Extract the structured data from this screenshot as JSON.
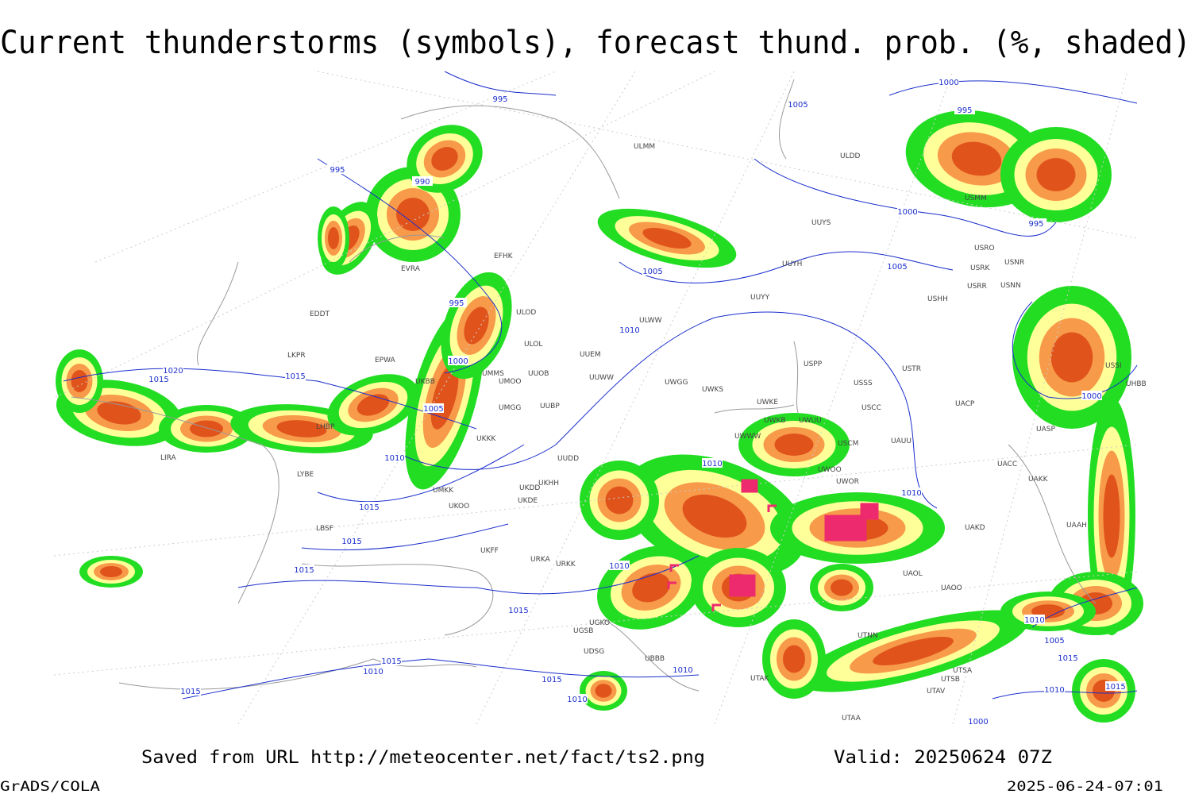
{
  "title": "Current thunderstorms (symbols), forecast thund. prob. (%, shaded)",
  "footer": {
    "source": "Saved from URL http://meteocenter.net/fact/ts2.png",
    "valid": "Valid: 20250624 07Z",
    "software": "GrADS/COLA",
    "timestamp": "2025-06-24-07:01"
  },
  "map": {
    "isobar_labels": [
      995,
      1005,
      1000,
      995,
      995,
      990,
      1000,
      995,
      1005,
      1005,
      995,
      1010,
      1000,
      1015,
      1020,
      1015,
      1005,
      1000,
      1010,
      1010,
      1015,
      1010,
      1015,
      1015,
      1010,
      1015,
      1010,
      1005,
      1015,
      1010,
      1015,
      1010,
      1010,
      1015,
      1015,
      1010,
      1000,
      1015
    ],
    "stations": [
      "ULMM",
      "ULDD",
      "UUYS",
      "UUYH",
      "UUYY",
      "USHH",
      "ULWW",
      "UUEM",
      "ULOL",
      "ULOD",
      "EFHK",
      "UUWW",
      "UMMS",
      "UMOO",
      "UUOB",
      "UWGG",
      "UWKS",
      "UWKE",
      "UWKB",
      "UWUU",
      "USPP",
      "USSS",
      "USCC",
      "USTR",
      "USCM",
      "UAUU",
      "UACP",
      "UMGG",
      "UUBP",
      "UKKK",
      "UKHH",
      "UKDD",
      "UKDE",
      "UKOO",
      "UKFF",
      "URKA",
      "URKK",
      "UGSB",
      "UGKO",
      "UDSG",
      "UBBB",
      "UTAK",
      "UTNN",
      "UTSA",
      "UTSB",
      "UTAA",
      "UTAV",
      "UACC",
      "UAKK",
      "UAAH",
      "UASP",
      "UAOO",
      "UAOL",
      "UAKD",
      "USRR",
      "USRK",
      "USNN",
      "USNR",
      "USRO",
      "USMM",
      "EPWA",
      "EDDT",
      "LKPR",
      "LIRA",
      "LYBE",
      "LBSF",
      "LHBP",
      "UUDD",
      "UWOO",
      "UWOR",
      "UWWW",
      "USSI",
      "UHBB",
      "EVRA",
      "UKBB",
      "UMKK"
    ]
  }
}
